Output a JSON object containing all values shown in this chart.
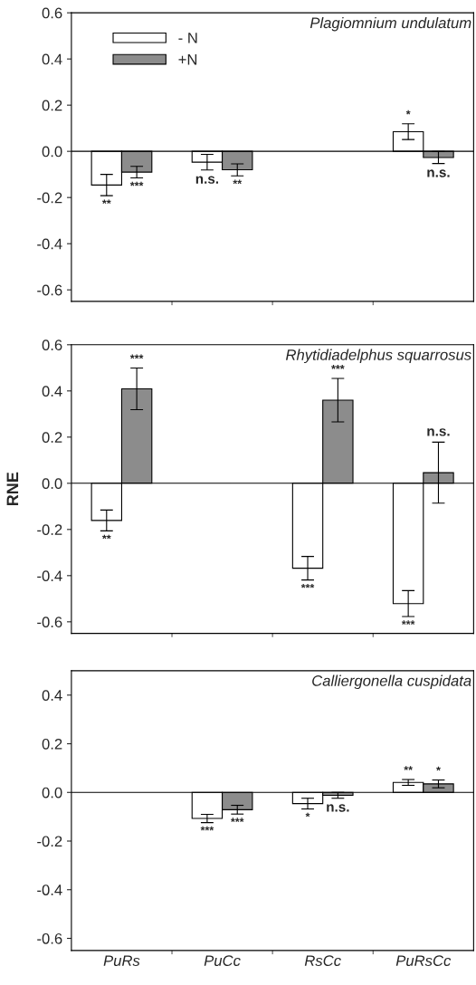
{
  "chart_data": [
    {
      "type": "bar",
      "title": "Plagiomnium undulatum",
      "categories": [
        null,
        null,
        null,
        null
      ],
      "legend": "top left",
      "grid": false,
      "ylim": [
        -0.65,
        0.6
      ],
      "yticks": [
        {
          "value": -0.6,
          "label": "-0.6"
        },
        {
          "value": -0.4,
          "label": "-0.4"
        },
        {
          "value": -0.2,
          "label": "-0.2"
        },
        {
          "value": 0,
          "label": "0.0"
        },
        {
          "value": 0.2,
          "label": "0.2"
        },
        {
          "value": 0.4,
          "label": "0.4"
        },
        {
          "value": 0.6,
          "label": "0.6"
        }
      ],
      "ref_lines": [
        {
          "axis": "y",
          "value": 0,
          "color": "#000000"
        }
      ],
      "series": [
        {
          "name": "- N",
          "color": "#ffffff",
          "values": [
            -0.146,
            -0.047,
            null,
            0.085
          ],
          "errors": [
            0.046,
            0.034,
            null,
            0.034
          ],
          "value_labels": [
            "**",
            "n.s.",
            null,
            "*"
          ]
        },
        {
          "name": "+N",
          "color": "#8c8c8c",
          "values": [
            -0.09,
            -0.08,
            null,
            -0.027
          ],
          "errors": [
            0.025,
            0.026,
            null,
            0.026
          ],
          "value_labels": [
            "***",
            "**",
            null,
            "n.s."
          ]
        }
      ]
    },
    {
      "type": "bar",
      "title": "Rhytidiadelphus squarrosus",
      "ylabel": "RNE",
      "categories": [
        null,
        null,
        null,
        null
      ],
      "grid": false,
      "ylim": [
        -0.65,
        0.6
      ],
      "yticks": [
        {
          "value": -0.6,
          "label": "-0.6"
        },
        {
          "value": -0.4,
          "label": "-0.4"
        },
        {
          "value": -0.2,
          "label": "-0.2"
        },
        {
          "value": 0,
          "label": "0.0"
        },
        {
          "value": 0.2,
          "label": "0.2"
        },
        {
          "value": 0.4,
          "label": "0.4"
        },
        {
          "value": 0.6,
          "label": "0.6"
        }
      ],
      "ref_lines": [
        {
          "axis": "y",
          "value": 0,
          "color": "#000000"
        }
      ],
      "series": [
        {
          "color": "#ffffff",
          "values": [
            -0.161,
            null,
            -0.368,
            -0.521
          ],
          "errors": [
            0.045,
            null,
            0.051,
            0.056
          ],
          "value_labels": [
            "**",
            null,
            "***",
            "***"
          ]
        },
        {
          "color": "#8c8c8c",
          "values": [
            0.409,
            null,
            0.36,
            0.046
          ],
          "errors": [
            0.09,
            null,
            0.094,
            0.132
          ],
          "value_labels": [
            "***",
            null,
            "***",
            "n.s."
          ]
        }
      ]
    },
    {
      "type": "bar",
      "title": "Calliergonella cuspidata",
      "categories": [
        "PuRs",
        "PuCc",
        "RsCc",
        "PuRsCc"
      ],
      "grid": false,
      "ylim": [
        -0.65,
        0.5
      ],
      "yticks": [
        {
          "value": -0.6,
          "label": "-0.6"
        },
        {
          "value": -0.4,
          "label": "-0.4"
        },
        {
          "value": -0.2,
          "label": "-0.2"
        },
        {
          "value": 0,
          "label": "0.0"
        },
        {
          "value": 0.2,
          "label": "0.2"
        },
        {
          "value": 0.4,
          "label": "0.4"
        }
      ],
      "ref_lines": [
        {
          "axis": "y",
          "value": 0,
          "color": "#000000"
        }
      ],
      "series": [
        {
          "color": "#ffffff",
          "values": [
            null,
            -0.107,
            -0.046,
            0.041
          ],
          "errors": [
            null,
            0.017,
            0.022,
            0.012
          ],
          "value_labels": [
            null,
            "***",
            "*",
            "**"
          ]
        },
        {
          "color": "#8c8c8c",
          "values": [
            null,
            -0.071,
            -0.012,
            0.035
          ],
          "errors": [
            null,
            0.018,
            0.012,
            0.016
          ],
          "value_labels": [
            null,
            "***",
            "n.s.",
            "*"
          ]
        }
      ]
    }
  ]
}
